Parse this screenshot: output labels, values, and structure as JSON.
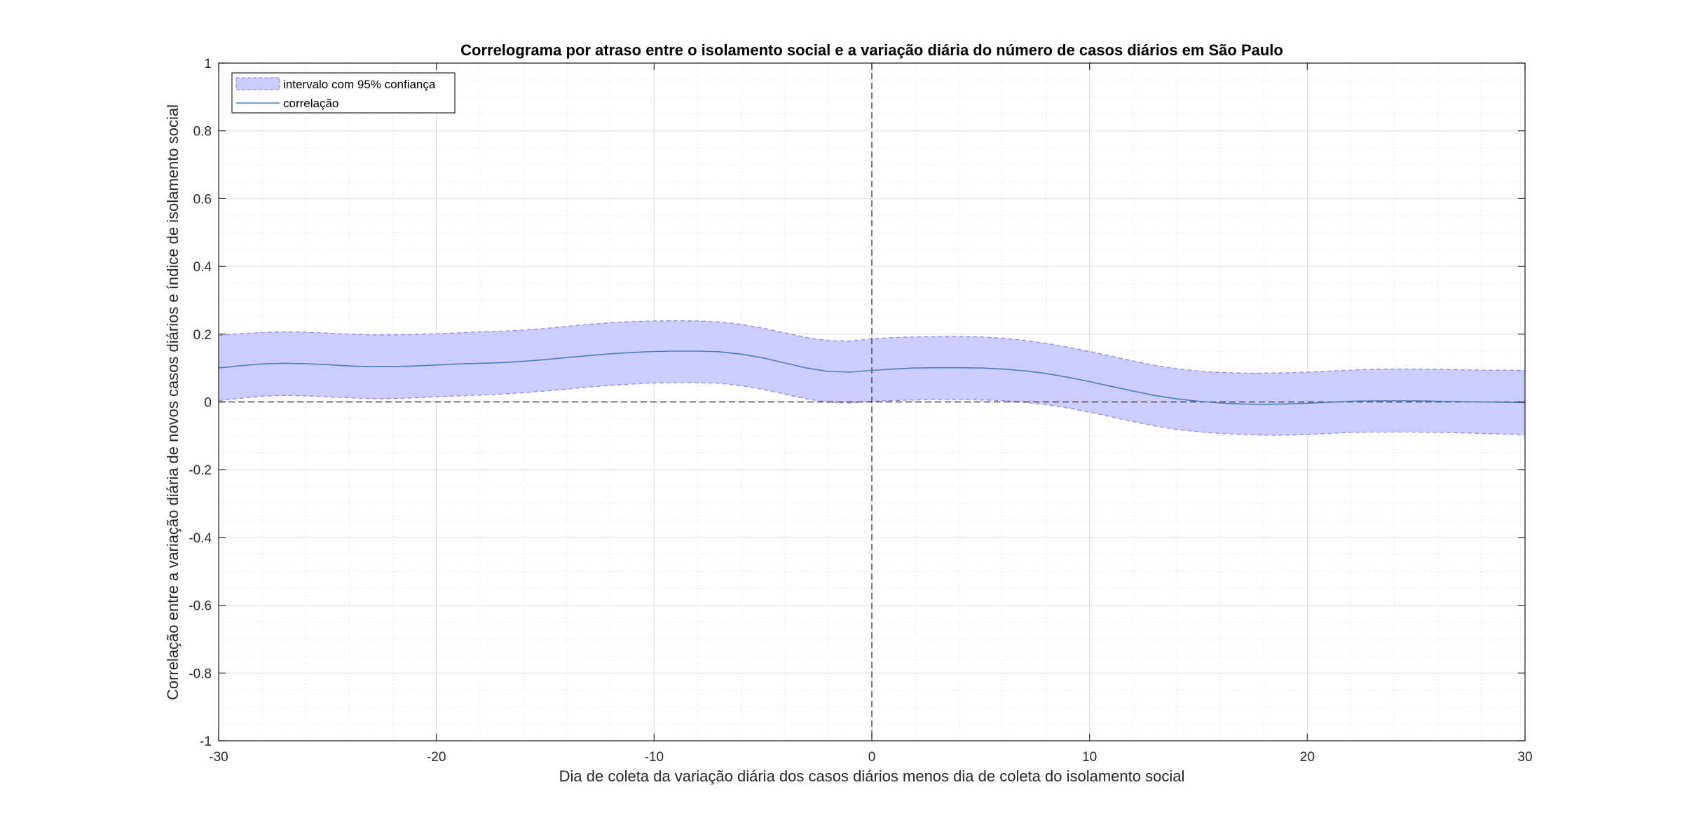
{
  "chart_data": {
    "type": "line",
    "title": "Correlograma por atraso entre o isolamento social e a variação diária do número de casos diários em São Paulo",
    "xlabel": "Dia de coleta da variação diária dos casos diários menos dia de coleta do isolamento social",
    "ylabel": "Correlação entre a variação diária de novos casos diários e índice de isolamento social",
    "xlim": [
      -30,
      30
    ],
    "ylim": [
      -1,
      1
    ],
    "xticks": [
      -30,
      -20,
      -10,
      0,
      10,
      20,
      30
    ],
    "yticks": [
      -1,
      -0.8,
      -0.6,
      -0.4,
      -0.2,
      0,
      0.2,
      0.4,
      0.6,
      0.8,
      1
    ],
    "xtick_labels": [
      "-30",
      "-20",
      "-10",
      "0",
      "10",
      "20",
      "30"
    ],
    "ytick_labels": [
      "-1",
      "-0.8",
      "-0.6",
      "-0.4",
      "-0.2",
      "0",
      "0.2",
      "0.4",
      "0.6",
      "0.8",
      "1"
    ],
    "grid": true,
    "minor_grid": true,
    "legend_position": "top-left",
    "colors": {
      "line": "#4a7dc0",
      "band_fill": "#ccccff",
      "band_edge": "#8c8cf0",
      "reference": "#444444",
      "grid": "#e6e6e6"
    },
    "x": [
      -30,
      -29,
      -28,
      -27,
      -26,
      -25,
      -24,
      -23,
      -22,
      -21,
      -20,
      -19,
      -18,
      -17,
      -16,
      -15,
      -14,
      -13,
      -12,
      -11,
      -10,
      -9,
      -8,
      -7,
      -6,
      -5,
      -4,
      -3,
      -2,
      -1,
      0,
      1,
      2,
      3,
      4,
      5,
      6,
      7,
      8,
      9,
      10,
      11,
      12,
      13,
      14,
      15,
      16,
      17,
      18,
      19,
      20,
      21,
      22,
      23,
      24,
      25,
      26,
      27,
      28,
      29,
      30
    ],
    "series": [
      {
        "name": "correlação",
        "role": "line",
        "values": [
          0.1,
          0.107,
          0.112,
          0.114,
          0.113,
          0.11,
          0.106,
          0.104,
          0.104,
          0.106,
          0.109,
          0.112,
          0.114,
          0.116,
          0.12,
          0.125,
          0.131,
          0.137,
          0.142,
          0.146,
          0.149,
          0.15,
          0.15,
          0.148,
          0.141,
          0.13,
          0.115,
          0.1,
          0.09,
          0.088,
          0.093,
          0.097,
          0.1,
          0.101,
          0.101,
          0.1,
          0.097,
          0.092,
          0.084,
          0.073,
          0.06,
          0.046,
          0.032,
          0.019,
          0.009,
          0.002,
          -0.003,
          -0.006,
          -0.007,
          -0.006,
          -0.004,
          -0.001,
          0.002,
          0.003,
          0.003,
          0.003,
          0.002,
          0.001,
          0.0,
          -0.001,
          -0.002
        ]
      },
      {
        "name": "intervalo com 95% confiança",
        "role": "band",
        "upper": [
          0.196,
          0.201,
          0.205,
          0.207,
          0.206,
          0.203,
          0.2,
          0.198,
          0.198,
          0.199,
          0.201,
          0.204,
          0.207,
          0.209,
          0.212,
          0.217,
          0.223,
          0.229,
          0.234,
          0.237,
          0.239,
          0.24,
          0.239,
          0.236,
          0.229,
          0.218,
          0.204,
          0.19,
          0.181,
          0.18,
          0.186,
          0.19,
          0.192,
          0.193,
          0.193,
          0.192,
          0.188,
          0.182,
          0.173,
          0.162,
          0.149,
          0.135,
          0.121,
          0.108,
          0.098,
          0.091,
          0.087,
          0.085,
          0.085,
          0.086,
          0.088,
          0.091,
          0.094,
          0.096,
          0.097,
          0.097,
          0.096,
          0.095,
          0.094,
          0.094,
          0.093
        ],
        "lower": [
          0.004,
          0.011,
          0.017,
          0.019,
          0.018,
          0.015,
          0.012,
          0.01,
          0.01,
          0.012,
          0.015,
          0.018,
          0.02,
          0.023,
          0.027,
          0.032,
          0.038,
          0.044,
          0.049,
          0.053,
          0.056,
          0.057,
          0.057,
          0.055,
          0.048,
          0.037,
          0.023,
          0.009,
          -0.001,
          -0.003,
          0.002,
          0.004,
          0.006,
          0.007,
          0.007,
          0.006,
          0.004,
          -0.001,
          -0.008,
          -0.018,
          -0.03,
          -0.044,
          -0.058,
          -0.071,
          -0.081,
          -0.088,
          -0.093,
          -0.096,
          -0.098,
          -0.098,
          -0.096,
          -0.093,
          -0.09,
          -0.089,
          -0.089,
          -0.089,
          -0.09,
          -0.091,
          -0.093,
          -0.095,
          -0.097
        ]
      }
    ],
    "reference_lines": [
      {
        "axis": "y",
        "value": 0,
        "style": "dashed"
      },
      {
        "axis": "x",
        "value": 0,
        "style": "dashed"
      }
    ]
  }
}
